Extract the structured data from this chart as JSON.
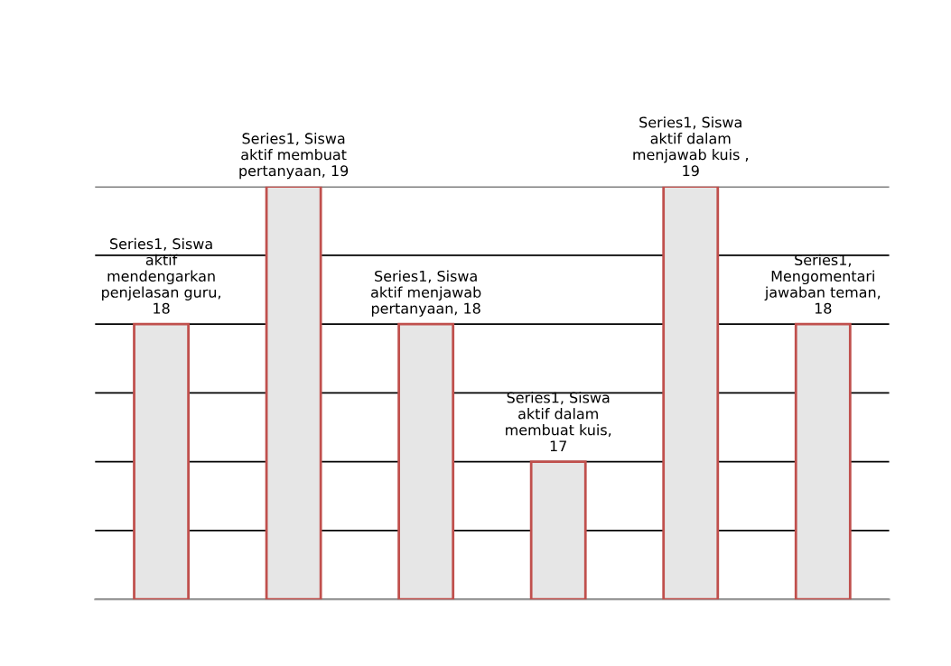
{
  "chart_data": {
    "type": "bar",
    "categories": [
      null,
      null,
      null,
      null,
      null,
      null
    ],
    "values": [
      18,
      19,
      18,
      17,
      19,
      18
    ],
    "color": "#e6e6e6",
    "value_labels": [
      "Series1, Siswa\naktif\nmendengarkan\npenjelasan guru,\n18",
      "Series1, Siswa\naktif membuat\npertanyaan, 19",
      "Series1, Siswa\naktif menjawab\npertanyaan, 18",
      "Series1, Siswa\naktif dalam\nmembuat kuis,\n17",
      "Series1, Siswa\naktif dalam\nmenjawab kuis ,\n19",
      "Series1,\nMengomentari\njawaban teman,\n18"
    ],
    "ylim": [
      16,
      19
    ],
    "yticks": [
      16,
      16.5,
      17,
      17.5,
      18,
      18.5,
      19
    ],
    "grid": "y",
    "tick_labels": false
  }
}
